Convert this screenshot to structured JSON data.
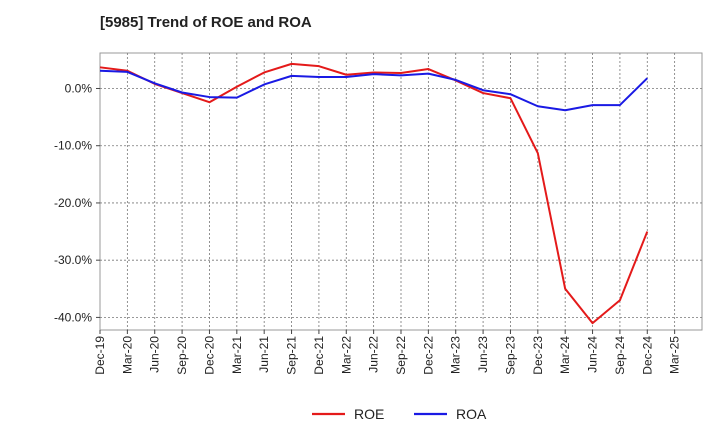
{
  "chart_data": {
    "type": "line",
    "title": "[5985]  Trend of ROE and ROA",
    "x": [
      "Dec-19",
      "Mar-20",
      "Jun-20",
      "Sep-20",
      "Dec-20",
      "Mar-21",
      "Jun-21",
      "Sep-21",
      "Dec-21",
      "Mar-22",
      "Jun-22",
      "Sep-22",
      "Dec-22",
      "Mar-23",
      "Jun-23",
      "Sep-23",
      "Dec-23",
      "Mar-24",
      "Jun-24",
      "Sep-24",
      "Dec-24",
      "Mar-25"
    ],
    "yticks": [
      0,
      -10,
      -20,
      -30,
      -40
    ],
    "ytick_labels": [
      "0.0%",
      "-10.0%",
      "-20.0%",
      "-30.0%",
      "-40.0%"
    ],
    "ylim": [
      -42.2,
      6.2
    ],
    "grid": true,
    "legend": "bottom",
    "series": [
      {
        "name": "ROE",
        "color": "#e41a1a",
        "values": [
          3.7,
          3.1,
          0.8,
          -0.8,
          -2.4,
          0.3,
          2.8,
          4.3,
          3.9,
          2.4,
          2.8,
          2.7,
          3.4,
          1.4,
          -0.8,
          -1.7,
          -11.3,
          -35.0,
          -41.0,
          -37.0,
          -25.0,
          null
        ]
      },
      {
        "name": "ROA",
        "color": "#1a1ae4",
        "values": [
          3.1,
          2.9,
          0.9,
          -0.7,
          -1.5,
          -1.6,
          0.7,
          2.2,
          2.0,
          2.0,
          2.5,
          2.3,
          2.6,
          1.5,
          -0.3,
          -1.0,
          -3.1,
          -3.8,
          -2.9,
          -2.9,
          1.8,
          null
        ]
      }
    ]
  }
}
